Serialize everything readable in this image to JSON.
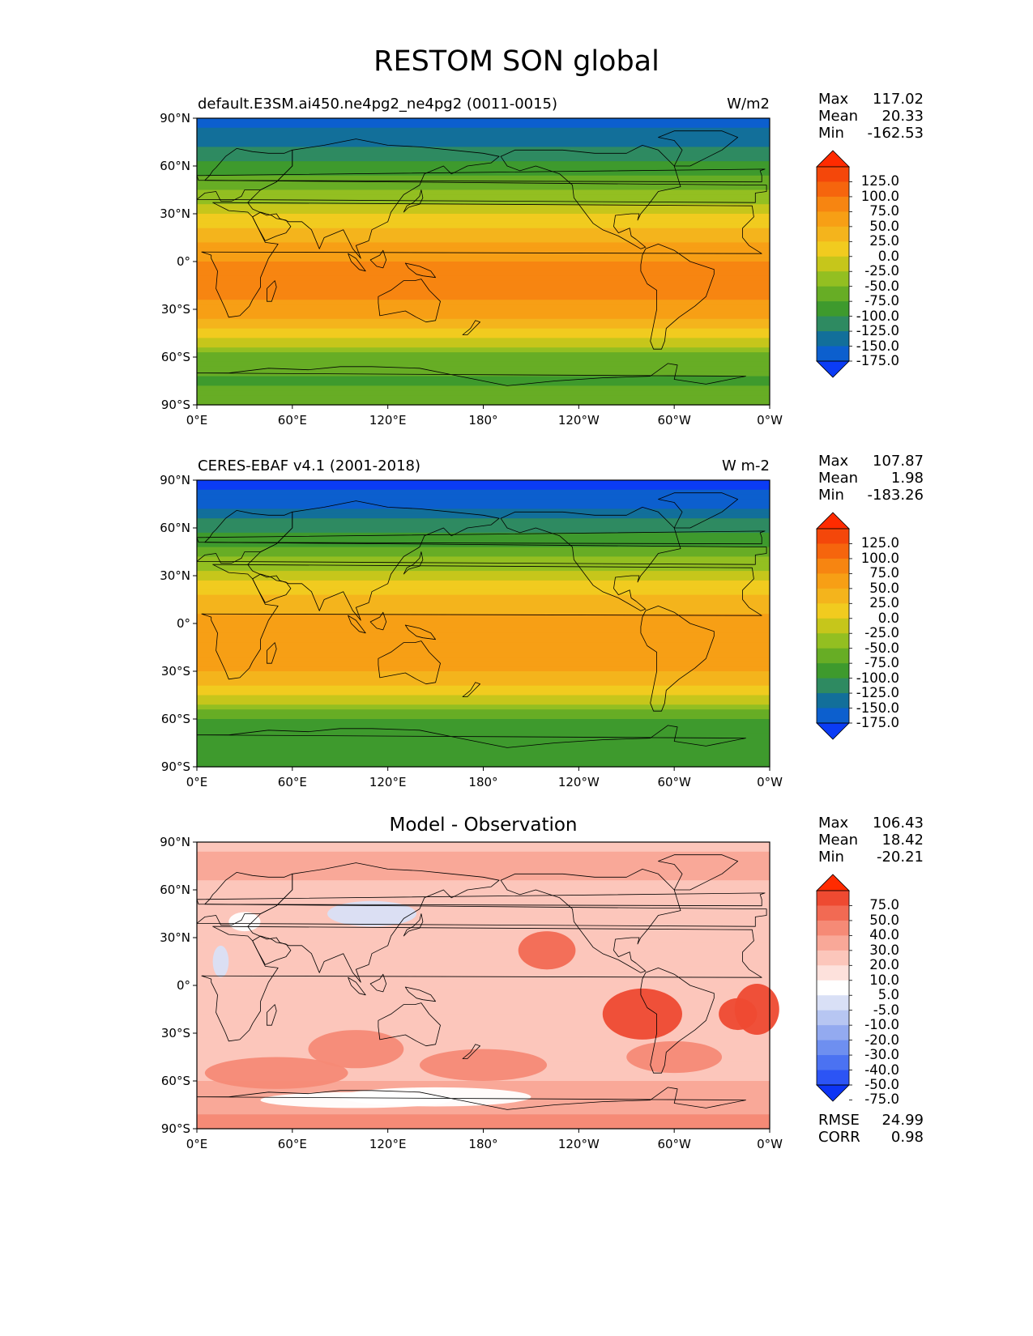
{
  "figure_title": "RESTOM SON global",
  "panels": [
    {
      "name": "model",
      "left_title": "default.E3SM.ai450.ne4pg2_ne4pg2 (0011-0015)",
      "right_title": "W/m2",
      "center_title": "",
      "stats": {
        "max_label": "Max",
        "max": "117.02",
        "mean_label": "Mean",
        "mean": "20.33",
        "min_label": "Min",
        "min": "-162.53"
      },
      "colorbar_labels": [
        "125.0",
        "100.0",
        "75.0",
        "50.0",
        "25.0",
        "0.0",
        "-25.0",
        "-50.0",
        "-75.0",
        "-100.0",
        "-125.0",
        "-150.0",
        "-175.0"
      ]
    },
    {
      "name": "observation",
      "left_title": "CERES-EBAF v4.1 (2001-2018)",
      "right_title": "W m-2",
      "center_title": "",
      "stats": {
        "max_label": "Max",
        "max": "107.87",
        "mean_label": "Mean",
        "mean": "1.98",
        "min_label": "Min",
        "min": "-183.26"
      },
      "colorbar_labels": [
        "125.0",
        "100.0",
        "75.0",
        "50.0",
        "25.0",
        "0.0",
        "-25.0",
        "-50.0",
        "-75.0",
        "-100.0",
        "-125.0",
        "-150.0",
        "-175.0"
      ]
    },
    {
      "name": "difference",
      "left_title": "",
      "right_title": "",
      "center_title": "Model - Observation",
      "stats": {
        "max_label": "Max",
        "max": "106.43",
        "mean_label": "Mean",
        "mean": "18.42",
        "min_label": "Min",
        "min": "-20.21"
      },
      "colorbar_labels": [
        "75.0",
        "50.0",
        "40.0",
        "30.0",
        "20.0",
        "10.0",
        "5.0",
        "-5.0",
        "-10.0",
        "-20.0",
        "-30.0",
        "-40.0",
        "-50.0",
        "-75.0"
      ],
      "extra_stats": {
        "rmse_label": "RMSE",
        "rmse": "24.99",
        "corr_label": "CORR",
        "corr": "0.98"
      }
    }
  ],
  "axes": {
    "lat_ticks": [
      "90°N",
      "60°N",
      "30°N",
      "0°",
      "30°S",
      "60°S",
      "90°S"
    ],
    "lon_ticks": [
      "0°E",
      "60°E",
      "120°E",
      "180°",
      "120°W",
      "60°W",
      "0°W"
    ]
  },
  "colors": {
    "full_field": [
      "#0b3cf5",
      "#0c5fce",
      "#126f9a",
      "#2e8a61",
      "#3e9a2d",
      "#67ad25",
      "#93bf21",
      "#c6c61b",
      "#f1cb1f",
      "#f4b41c",
      "#f79f15",
      "#f78511",
      "#f6650d",
      "#f4470a",
      "#ff2b00"
    ],
    "difference": [
      "#0c34f5",
      "#2c54f5",
      "#4b72f2",
      "#6e8ff0",
      "#93aaf0",
      "#b7c6f2",
      "#d9e0f6",
      "#ffffff",
      "#fde1dc",
      "#fcc6bb",
      "#f9a898",
      "#f68a76",
      "#f26a53",
      "#ee4a31",
      "#ff2b00"
    ]
  },
  "chart_data": [
    {
      "type": "heatmap",
      "title": "default.E3SM.ai450.ne4pg2_ne4pg2 (0011-0015)",
      "units": "W/m2",
      "x_ticks": [
        "0°E",
        "60°E",
        "120°E",
        "180°",
        "120°W",
        "60°W",
        "0°W"
      ],
      "y_ticks": [
        "90°N",
        "60°N",
        "30°N",
        "0°",
        "30°S",
        "60°S",
        "90°S"
      ],
      "levels": [
        -175,
        -150,
        -125,
        -100,
        -75,
        -50,
        -25,
        0,
        25,
        50,
        75,
        100,
        125
      ],
      "zonal_mean_profile": {
        "lat": [
          90,
          75,
          60,
          45,
          30,
          15,
          0,
          -15,
          -30,
          -45,
          -60,
          -75,
          -90
        ],
        "value": [
          -170,
          -130,
          -95,
          -55,
          -5,
          45,
          75,
          82,
          70,
          15,
          -60,
          -80,
          -60
        ]
      },
      "stats": {
        "max": 117.02,
        "mean": 20.33,
        "min": -162.53
      }
    },
    {
      "type": "heatmap",
      "title": "CERES-EBAF v4.1 (2001-2018)",
      "units": "W m-2",
      "x_ticks": [
        "0°E",
        "60°E",
        "120°E",
        "180°",
        "120°W",
        "60°W",
        "0°W"
      ],
      "y_ticks": [
        "90°N",
        "60°N",
        "30°N",
        "0°",
        "30°S",
        "60°S",
        "90°S"
      ],
      "levels": [
        -175,
        -150,
        -125,
        -100,
        -75,
        -50,
        -25,
        0,
        25,
        50,
        75,
        100,
        125
      ],
      "zonal_mean_profile": {
        "lat": [
          90,
          75,
          60,
          45,
          30,
          15,
          0,
          -15,
          -30,
          -45,
          -60,
          -75,
          -90
        ],
        "value": [
          -183,
          -160,
          -110,
          -65,
          -15,
          35,
          60,
          65,
          50,
          0,
          -80,
          -100,
          -100
        ]
      },
      "stats": {
        "max": 107.87,
        "mean": 1.98,
        "min": -183.26
      }
    },
    {
      "type": "heatmap",
      "title": "Model - Observation",
      "x_ticks": [
        "0°E",
        "60°E",
        "120°E",
        "180°",
        "120°W",
        "60°W",
        "0°W"
      ],
      "y_ticks": [
        "90°N",
        "60°N",
        "30°N",
        "0°",
        "30°S",
        "60°S",
        "90°S"
      ],
      "levels": [
        -75,
        -50,
        -40,
        -30,
        -20,
        -10,
        -5,
        5,
        10,
        20,
        30,
        40,
        50,
        75
      ],
      "zonal_mean_profile": {
        "lat": [
          90,
          75,
          60,
          45,
          30,
          15,
          0,
          -15,
          -30,
          -45,
          -60,
          -75,
          -90
        ],
        "value": [
          13,
          30,
          15,
          10,
          12,
          10,
          15,
          17,
          20,
          15,
          20,
          20,
          40
        ]
      },
      "stats": {
        "max": 106.43,
        "mean": 18.42,
        "min": -20.21,
        "rmse": 24.99,
        "corr": 0.98
      }
    }
  ]
}
